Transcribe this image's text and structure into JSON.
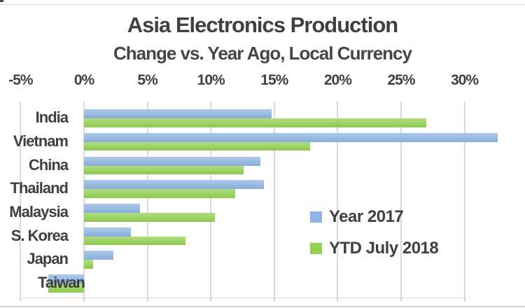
{
  "window": {
    "background": "#ffffff",
    "frame_line_color": "#d9d9d9"
  },
  "chart_data": {
    "type": "bar",
    "orientation": "horizontal",
    "title": "Asia Electronics Production",
    "subtitle": "Change vs. Year Ago, Local Currency",
    "categories": [
      "India",
      "Vietnam",
      "China",
      "Thailand",
      "Malaysia",
      "S. Korea",
      "Japan",
      "Taiwan"
    ],
    "series": [
      {
        "name": "Year 2017",
        "color": "#8db4e2",
        "values": [
          14.8,
          32.6,
          13.9,
          14.2,
          4.4,
          3.7,
          2.3,
          -2.8
        ]
      },
      {
        "name": "YTD July 2018",
        "color": "#92d050",
        "values": [
          27.0,
          17.8,
          12.6,
          11.9,
          10.3,
          8.0,
          0.7,
          -2.8
        ]
      }
    ],
    "x_axis": {
      "tick_labels": [
        "-5%",
        "0%",
        "5%",
        "10%",
        "15%",
        "20%",
        "25%",
        "30%"
      ],
      "tick_values": [
        -5,
        0,
        5,
        10,
        15,
        20,
        25,
        30
      ],
      "min": -5,
      "max": 33,
      "unit": "%"
    },
    "grid": true,
    "legend_position": "inside-right",
    "text_color": "#404040",
    "gridline_color": "#d9d9d9"
  }
}
